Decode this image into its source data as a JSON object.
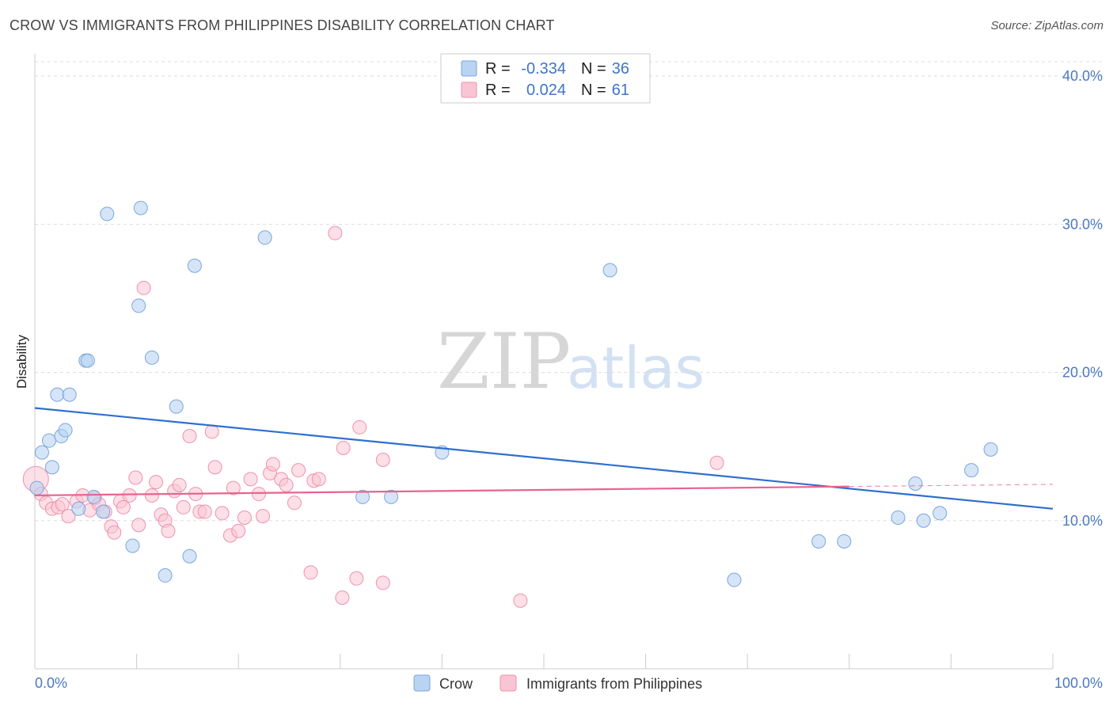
{
  "header": {
    "title": "CROW VS IMMIGRANTS FROM PHILIPPINES DISABILITY CORRELATION CHART",
    "source": "Source: ZipAtlas.com"
  },
  "watermark": {
    "zip": "ZIP",
    "atlas": "atlas"
  },
  "legend": {
    "rows": [
      {
        "r_label": "R =",
        "r_value": "-0.334",
        "n_label": "N =",
        "n_value": "36"
      },
      {
        "r_label": "R =",
        "r_value": "0.024",
        "n_label": "N =",
        "n_value": "61"
      }
    ]
  },
  "bottom_legend": {
    "crow": "Crow",
    "philippines": "Immigrants from Philippines"
  },
  "colors": {
    "crow_fill": "#b9d3f2",
    "crow_stroke": "#7aa6dd",
    "crow_line": "#2e6fcf",
    "ph_fill": "#f9c5d4",
    "ph_stroke": "#ee92ae",
    "ph_line": "#e8648f",
    "tick_text": "#4a78c2",
    "grid": "#dddddd"
  },
  "chart_data": {
    "type": "scatter",
    "title": "CROW VS IMMIGRANTS FROM PHILIPPINES DISABILITY CORRELATION CHART",
    "xlabel": "",
    "ylabel": "Disability",
    "xlim": [
      0,
      100
    ],
    "ylim": [
      0,
      41.5
    ],
    "y_ticks": [
      {
        "value": 10,
        "label": "10.0%"
      },
      {
        "value": 20,
        "label": "20.0%"
      },
      {
        "value": 30,
        "label": "30.0%"
      },
      {
        "value": 40,
        "label": "40.0%"
      }
    ],
    "x_tick_labels": [
      {
        "value": 0,
        "label": "0.0%"
      },
      {
        "value": 100,
        "label": "100.0%"
      }
    ],
    "grid": true,
    "legend_position": "top-center",
    "series": [
      {
        "name": "Crow",
        "r": -0.334,
        "n": 36,
        "trend": {
          "x": [
            0,
            100
          ],
          "y": [
            17.6,
            10.8
          ]
        },
        "points": [
          [
            0.2,
            12.2
          ],
          [
            0.7,
            14.6
          ],
          [
            1.4,
            15.4
          ],
          [
            1.7,
            13.6
          ],
          [
            2.2,
            18.5
          ],
          [
            2.6,
            15.7
          ],
          [
            3.0,
            16.1
          ],
          [
            3.4,
            18.5
          ],
          [
            4.3,
            10.8
          ],
          [
            5.0,
            20.8
          ],
          [
            5.2,
            20.8
          ],
          [
            5.8,
            11.6
          ],
          [
            6.7,
            10.6
          ],
          [
            7.1,
            30.7
          ],
          [
            9.6,
            8.3
          ],
          [
            10.2,
            24.5
          ],
          [
            10.4,
            31.1
          ],
          [
            11.5,
            21.0
          ],
          [
            12.8,
            6.3
          ],
          [
            13.9,
            17.7
          ],
          [
            15.2,
            7.6
          ],
          [
            15.7,
            27.2
          ],
          [
            22.6,
            29.1
          ],
          [
            32.2,
            11.6
          ],
          [
            35.0,
            11.6
          ],
          [
            40.0,
            14.6
          ],
          [
            56.5,
            26.9
          ],
          [
            68.7,
            6.0
          ],
          [
            77.0,
            8.6
          ],
          [
            79.5,
            8.6
          ],
          [
            84.8,
            10.2
          ],
          [
            86.5,
            12.5
          ],
          [
            87.3,
            10.0
          ],
          [
            88.9,
            10.5
          ],
          [
            92.0,
            13.4
          ],
          [
            93.9,
            14.8
          ]
        ]
      },
      {
        "name": "Immigrants from Philippines",
        "r": 0.024,
        "n": 61,
        "trend": {
          "x": [
            0,
            80
          ],
          "y": [
            11.7,
            12.3
          ]
        },
        "trend_extension": {
          "x": [
            80,
            100
          ],
          "y": [
            12.3,
            12.45
          ]
        },
        "points": [
          [
            0.1,
            12.8
          ],
          [
            0.6,
            11.8
          ],
          [
            1.1,
            11.2
          ],
          [
            1.7,
            10.8
          ],
          [
            2.3,
            10.9
          ],
          [
            2.7,
            11.1
          ],
          [
            3.3,
            10.3
          ],
          [
            4.1,
            11.3
          ],
          [
            4.7,
            11.7
          ],
          [
            5.4,
            10.7
          ],
          [
            5.9,
            11.5
          ],
          [
            6.3,
            11.1
          ],
          [
            6.9,
            10.6
          ],
          [
            7.5,
            9.6
          ],
          [
            7.8,
            9.2
          ],
          [
            8.4,
            11.3
          ],
          [
            8.7,
            10.9
          ],
          [
            9.3,
            11.7
          ],
          [
            9.9,
            12.9
          ],
          [
            10.2,
            9.7
          ],
          [
            10.7,
            25.7
          ],
          [
            11.5,
            11.7
          ],
          [
            11.9,
            12.6
          ],
          [
            12.4,
            10.4
          ],
          [
            12.8,
            10.0
          ],
          [
            13.1,
            9.3
          ],
          [
            13.7,
            12.0
          ],
          [
            14.2,
            12.4
          ],
          [
            14.6,
            10.9
          ],
          [
            15.2,
            15.7
          ],
          [
            15.8,
            11.8
          ],
          [
            16.2,
            10.6
          ],
          [
            16.7,
            10.6
          ],
          [
            17.4,
            16.0
          ],
          [
            17.7,
            13.6
          ],
          [
            18.4,
            10.5
          ],
          [
            19.2,
            9.0
          ],
          [
            19.5,
            12.2
          ],
          [
            20.0,
            9.3
          ],
          [
            20.6,
            10.2
          ],
          [
            21.2,
            12.8
          ],
          [
            22.0,
            11.8
          ],
          [
            22.4,
            10.3
          ],
          [
            23.1,
            13.2
          ],
          [
            23.4,
            13.8
          ],
          [
            24.2,
            12.8
          ],
          [
            24.7,
            12.4
          ],
          [
            25.5,
            11.2
          ],
          [
            25.9,
            13.4
          ],
          [
            27.1,
            6.5
          ],
          [
            27.4,
            12.7
          ],
          [
            27.9,
            12.8
          ],
          [
            29.5,
            29.4
          ],
          [
            30.2,
            4.8
          ],
          [
            30.3,
            14.9
          ],
          [
            31.6,
            6.1
          ],
          [
            31.9,
            16.3
          ],
          [
            34.2,
            14.1
          ],
          [
            34.2,
            5.8
          ],
          [
            47.7,
            4.6
          ],
          [
            67.0,
            13.9
          ]
        ]
      }
    ]
  }
}
